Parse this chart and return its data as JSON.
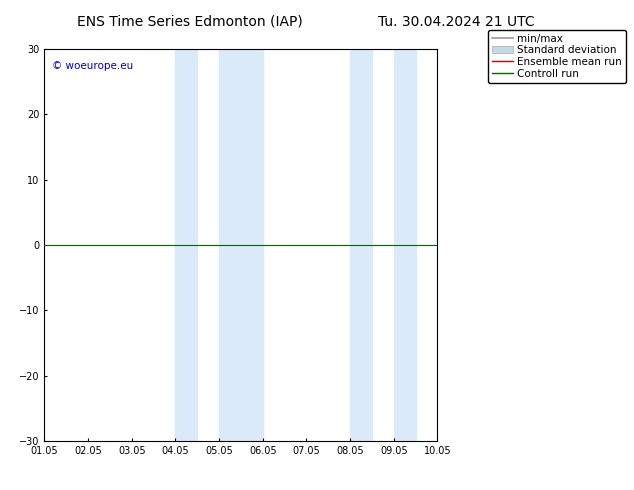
{
  "title_left": "ENS Time Series Edmonton (IAP)",
  "title_right": "Tu. 30.04.2024 21 UTC",
  "ylim": [
    -30,
    30
  ],
  "yticks": [
    -30,
    -20,
    -10,
    0,
    10,
    20,
    30
  ],
  "xlim": [
    0,
    9
  ],
  "xtick_labels": [
    "01.05",
    "02.05",
    "03.05",
    "04.05",
    "05.05",
    "06.05",
    "07.05",
    "08.05",
    "09.05",
    "10.05"
  ],
  "xtick_positions": [
    0,
    1,
    2,
    3,
    4,
    5,
    6,
    7,
    8,
    9
  ],
  "shaded_regions": [
    [
      3.0,
      3.5
    ],
    [
      4.0,
      5.0
    ],
    [
      7.0,
      7.5
    ],
    [
      8.0,
      8.5
    ]
  ],
  "shade_color": "#daeaf8",
  "watermark_text": "© woeurope.eu",
  "watermark_color": "#0000cc",
  "ensemble_mean_color": "#cc0000",
  "control_run_color": "#006600",
  "minmax_color": "#999999",
  "stddev_color": "#c8d8e8",
  "background_color": "#ffffff",
  "title_fontsize": 10,
  "tick_fontsize": 7,
  "legend_fontsize": 7.5
}
